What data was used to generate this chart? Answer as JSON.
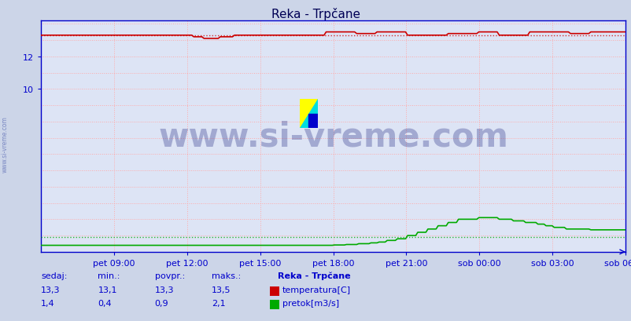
{
  "title": "Reka - Trpčane",
  "bg_color": "#ccd5e8",
  "plot_bg_color": "#dde4f5",
  "grid_color": "#ffaaaa",
  "xlabel": "",
  "ylabel": "",
  "ylim_min": 0,
  "ylim_max": 14.222,
  "yticks": [
    10,
    12
  ],
  "xtick_labels": [
    "pet 09:00",
    "pet 12:00",
    "pet 15:00",
    "pet 18:00",
    "pet 21:00",
    "sob 00:00",
    "sob 03:00",
    "sob 06:00"
  ],
  "n_points": 288,
  "temp_color": "#cc0000",
  "flow_color": "#00aa00",
  "axis_color": "#0000cc",
  "title_color": "#000055",
  "watermark_color": "#1a237e",
  "watermark_text": "www.si-vreme.com",
  "watermark_fontsize": 30,
  "info_color": "#0000cc",
  "legend_title": "Reka - Trpčane",
  "label_temp": "temperatura[C]",
  "label_flow": "pretok[m3/s]",
  "table_headers": [
    "sedaj:",
    "min.:",
    "povpr.:",
    "maks.:"
  ],
  "table_temp": [
    "13,3",
    "13,1",
    "13,3",
    "13,5"
  ],
  "table_flow": [
    "1,4",
    "0,4",
    "0,9",
    "2,1"
  ],
  "temp_avg_line": 13.3,
  "flow_avg_line": 0.9
}
